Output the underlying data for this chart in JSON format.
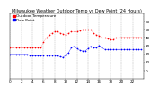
{
  "title": "Milwaukee Weather Outdoor Temp vs Dew Point (24 Hours)",
  "legend_temp": "Outdoor Temperature",
  "legend_dew": "Dew Point",
  "temp_color": "#ff0000",
  "dew_color": "#0000ff",
  "bg_color": "#ffffff",
  "grid_color": "#888888",
  "xlim": [
    0,
    24
  ],
  "ylim": [
    -10,
    70
  ],
  "ytick_values": [
    0,
    10,
    20,
    30,
    40,
    50,
    60
  ],
  "ytick_labels": [
    "0",
    "10",
    "20",
    "30",
    "40",
    "50",
    "60"
  ],
  "xtick_values": [
    0,
    2,
    4,
    6,
    8,
    10,
    12,
    14,
    16,
    18,
    20,
    22
  ],
  "xtick_labels": [
    "0",
    "2",
    "4",
    "6",
    "8",
    "10",
    "12",
    "14",
    "16",
    "18",
    "20",
    "22"
  ],
  "vgrid_positions": [
    0,
    2,
    4,
    6,
    8,
    10,
    12,
    14,
    16,
    18,
    20,
    22,
    24
  ],
  "temp_x": [
    0.0,
    0.5,
    1.0,
    1.5,
    2.0,
    2.5,
    3.0,
    3.5,
    4.0,
    4.5,
    5.0,
    5.5,
    6.0,
    6.5,
    7.0,
    7.5,
    8.0,
    8.5,
    9.0,
    9.5,
    10.0,
    10.5,
    11.0,
    11.5,
    12.0,
    12.5,
    13.0,
    13.5,
    14.0,
    14.5,
    15.0,
    15.5,
    16.0,
    16.5,
    17.0,
    17.5,
    18.0,
    18.5,
    19.0,
    19.5,
    20.0,
    20.5,
    21.0,
    21.5,
    22.0,
    22.5,
    23.0,
    23.5
  ],
  "temp_y": [
    28,
    28,
    28,
    28,
    28,
    28,
    28,
    28,
    28,
    28,
    28,
    28,
    35,
    40,
    44,
    46,
    48,
    48,
    46,
    45,
    44,
    46,
    48,
    48,
    48,
    49,
    50,
    50,
    50,
    50,
    46,
    44,
    43,
    40,
    40,
    39,
    38,
    38,
    40,
    40,
    41,
    41,
    41,
    41,
    41,
    41,
    41,
    41
  ],
  "dew_x": [
    0.0,
    0.5,
    1.0,
    1.5,
    2.0,
    2.5,
    3.0,
    3.5,
    4.0,
    4.5,
    5.0,
    5.5,
    6.0,
    6.5,
    7.0,
    7.5,
    8.0,
    8.5,
    9.0,
    9.5,
    10.0,
    10.5,
    11.0,
    11.5,
    12.0,
    12.5,
    13.0,
    13.5,
    14.0,
    14.5,
    15.0,
    15.5,
    16.0,
    16.5,
    17.0,
    17.5,
    18.0,
    18.5,
    19.0,
    19.5,
    20.0,
    20.5,
    21.0,
    21.5,
    22.0,
    22.5,
    23.0,
    23.5
  ],
  "dew_y": [
    20,
    20,
    20,
    20,
    20,
    20,
    20,
    19,
    18,
    18,
    18,
    18,
    19,
    19,
    19,
    19,
    19,
    18,
    17,
    16,
    19,
    22,
    28,
    30,
    27,
    25,
    24,
    24,
    27,
    30,
    28,
    28,
    31,
    28,
    26,
    26,
    26,
    26,
    26,
    26,
    26,
    26,
    26,
    26,
    26,
    26,
    26,
    26
  ],
  "title_fontsize": 3.5,
  "tick_fontsize": 3.0,
  "legend_fontsize": 3.0,
  "dot_size": 1.5,
  "line_width": 1.0
}
